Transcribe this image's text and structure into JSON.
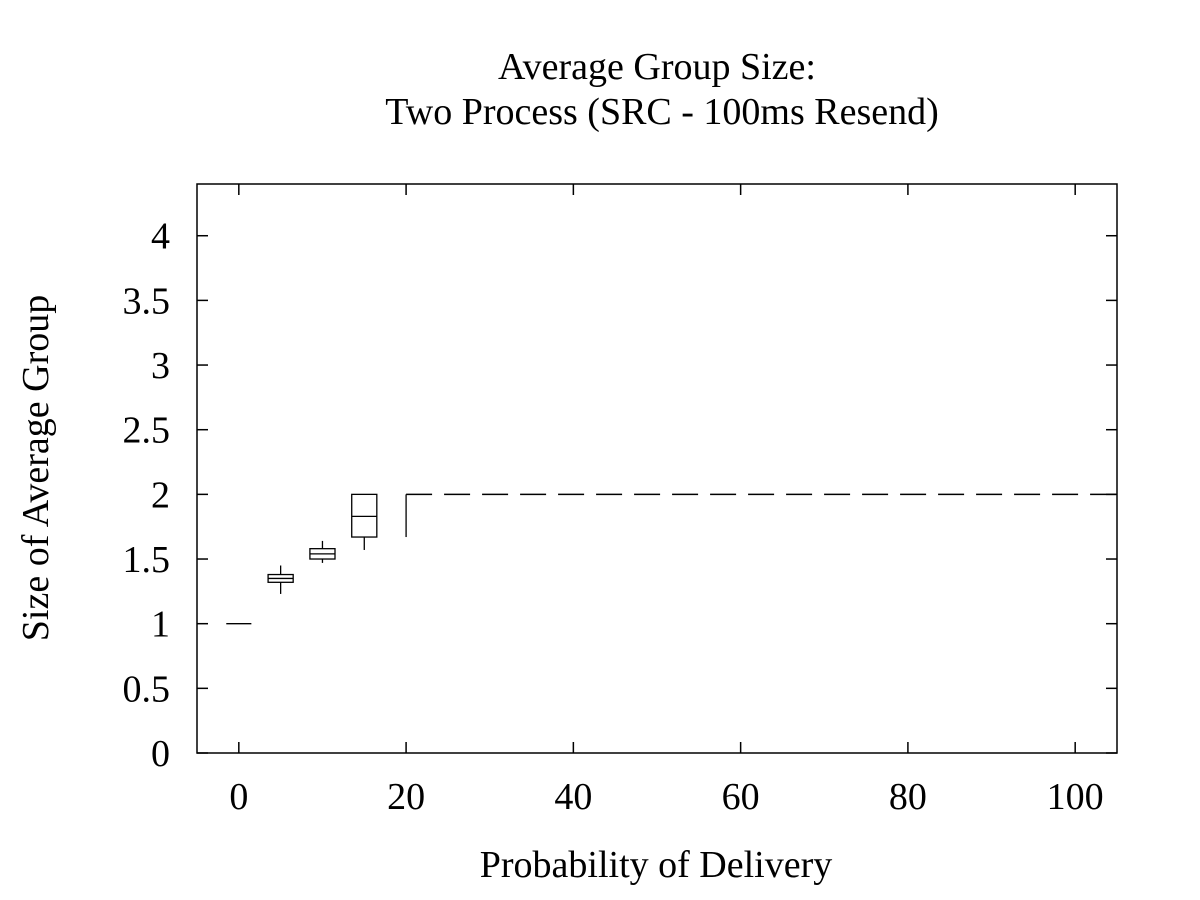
{
  "chart_data": {
    "type": "box",
    "title": [
      "Average Group Size:",
      "Two Process (SRC - 100ms Resend)"
    ],
    "xlabel": "Probability of Delivery",
    "ylabel": "Size of Average Group",
    "xlim": [
      -5,
      105
    ],
    "ylim": [
      0,
      4.4
    ],
    "xticks": [
      0,
      20,
      40,
      60,
      80,
      100
    ],
    "xtick_labels": [
      "0",
      "20",
      "40",
      "60",
      "80",
      "100"
    ],
    "yticks": [
      0,
      0.5,
      1,
      1.5,
      2,
      2.5,
      3,
      3.5,
      4
    ],
    "ytick_labels": [
      "0",
      "0.5",
      "1",
      "1.5",
      "2",
      "2.5",
      "3",
      "3.5",
      "4"
    ],
    "box_width": 3,
    "grid": false,
    "boxes": [
      {
        "x": 0,
        "min": 1.0,
        "q1": 1.0,
        "median": 1.0,
        "q3": 1.0,
        "max": 1.0
      },
      {
        "x": 5,
        "min": 1.23,
        "q1": 1.32,
        "median": 1.35,
        "q3": 1.38,
        "max": 1.45
      },
      {
        "x": 10,
        "min": 1.47,
        "q1": 1.5,
        "median": 1.54,
        "q3": 1.58,
        "max": 1.64
      },
      {
        "x": 15,
        "min": 1.57,
        "q1": 1.67,
        "median": 1.83,
        "q3": 2.0,
        "max": 2.0
      },
      {
        "x": 20,
        "min": 1.67,
        "q1": 2.0,
        "median": 2.0,
        "q3": 2.0,
        "max": 2.0
      }
    ],
    "constant_segments": [
      {
        "x_start": 20,
        "x_end": 105,
        "y": 2.0,
        "style": "dashed"
      }
    ]
  }
}
